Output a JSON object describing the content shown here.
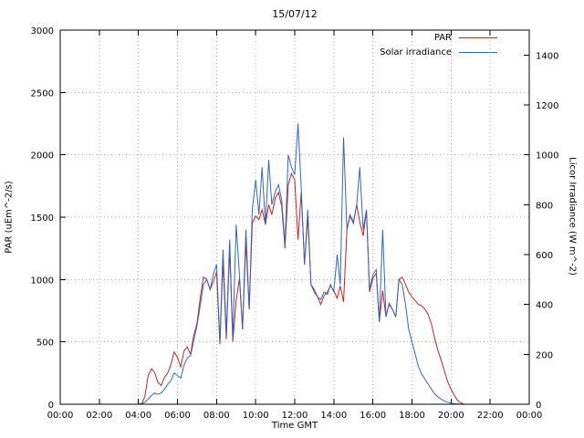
{
  "chart_data": {
    "type": "line",
    "title": "15/07/12",
    "xlabel": "Time GMT",
    "ylabel_left": "PAR (uEm^-2/s)",
    "ylabel_right": "Licor Irradiance (W m^-2)",
    "x_range": [
      0,
      24
    ],
    "y_left_range": [
      0,
      3000
    ],
    "y_right_range": [
      0,
      1500
    ],
    "grid": "dotted",
    "grid_color": "#b0b0b0",
    "legend_position": "top-right",
    "x_ticks": [
      [
        0,
        "00:00"
      ],
      [
        2,
        "02:00"
      ],
      [
        4,
        "04:00"
      ],
      [
        6,
        "06:00"
      ],
      [
        8,
        "08:00"
      ],
      [
        10,
        "10:00"
      ],
      [
        12,
        "12:00"
      ],
      [
        14,
        "14:00"
      ],
      [
        16,
        "16:00"
      ],
      [
        18,
        "18:00"
      ],
      [
        20,
        "20:00"
      ],
      [
        22,
        "22:00"
      ],
      [
        24,
        "00:00"
      ]
    ],
    "y_left_ticks": [
      0,
      500,
      1000,
      1500,
      2000,
      2500,
      3000
    ],
    "y_right_ticks": [
      0,
      200,
      400,
      600,
      800,
      1000,
      1200,
      1400
    ],
    "series": [
      {
        "name": "PAR",
        "axis": "left",
        "color": "#c42222",
        "units": "uEm^-2/s",
        "points": [
          [
            0,
            0
          ],
          [
            3.83,
            0
          ],
          [
            4.0,
            0
          ],
          [
            4.17,
            5
          ],
          [
            4.33,
            60
          ],
          [
            4.5,
            230
          ],
          [
            4.67,
            285
          ],
          [
            4.83,
            255
          ],
          [
            5.0,
            175
          ],
          [
            5.17,
            150
          ],
          [
            5.33,
            215
          ],
          [
            5.5,
            250
          ],
          [
            5.67,
            320
          ],
          [
            5.83,
            420
          ],
          [
            6.0,
            375
          ],
          [
            6.17,
            300
          ],
          [
            6.33,
            425
          ],
          [
            6.5,
            460
          ],
          [
            6.67,
            400
          ],
          [
            6.83,
            550
          ],
          [
            7.0,
            650
          ],
          [
            7.17,
            860
          ],
          [
            7.33,
            1020
          ],
          [
            7.5,
            1000
          ],
          [
            7.67,
            920
          ],
          [
            7.83,
            980
          ],
          [
            8.0,
            1060
          ],
          [
            8.17,
            480
          ],
          [
            8.33,
            1150
          ],
          [
            8.5,
            520
          ],
          [
            8.67,
            1250
          ],
          [
            8.83,
            500
          ],
          [
            9.0,
            830
          ],
          [
            9.17,
            1010
          ],
          [
            9.33,
            600
          ],
          [
            9.5,
            1300
          ],
          [
            9.67,
            760
          ],
          [
            9.83,
            1450
          ],
          [
            10.0,
            1510
          ],
          [
            10.17,
            1480
          ],
          [
            10.33,
            1560
          ],
          [
            10.5,
            1440
          ],
          [
            10.67,
            1600
          ],
          [
            10.83,
            1520
          ],
          [
            11.0,
            1650
          ],
          [
            11.17,
            1700
          ],
          [
            11.33,
            1590
          ],
          [
            11.5,
            1250
          ],
          [
            11.67,
            1760
          ],
          [
            11.83,
            1850
          ],
          [
            12.0,
            1800
          ],
          [
            12.17,
            1320
          ],
          [
            12.33,
            1700
          ],
          [
            12.5,
            1120
          ],
          [
            12.67,
            1500
          ],
          [
            12.83,
            960
          ],
          [
            13.0,
            900
          ],
          [
            13.17,
            860
          ],
          [
            13.33,
            800
          ],
          [
            13.5,
            870
          ],
          [
            13.67,
            900
          ],
          [
            13.83,
            950
          ],
          [
            14.0,
            910
          ],
          [
            14.17,
            850
          ],
          [
            14.33,
            950
          ],
          [
            14.5,
            820
          ],
          [
            14.67,
            1400
          ],
          [
            14.83,
            1510
          ],
          [
            15.0,
            1450
          ],
          [
            15.17,
            1600
          ],
          [
            15.33,
            1460
          ],
          [
            15.5,
            1350
          ],
          [
            15.67,
            1550
          ],
          [
            15.83,
            900
          ],
          [
            16.0,
            1010
          ],
          [
            16.17,
            1050
          ],
          [
            16.33,
            660
          ],
          [
            16.5,
            910
          ],
          [
            16.67,
            700
          ],
          [
            16.83,
            810
          ],
          [
            17.0,
            760
          ],
          [
            17.17,
            700
          ],
          [
            17.33,
            1000
          ],
          [
            17.5,
            1020
          ],
          [
            17.67,
            960
          ],
          [
            17.83,
            900
          ],
          [
            18.0,
            860
          ],
          [
            18.17,
            830
          ],
          [
            18.33,
            800
          ],
          [
            18.5,
            790
          ],
          [
            18.67,
            760
          ],
          [
            18.83,
            720
          ],
          [
            19.0,
            640
          ],
          [
            19.17,
            520
          ],
          [
            19.33,
            430
          ],
          [
            19.5,
            350
          ],
          [
            19.67,
            260
          ],
          [
            19.83,
            180
          ],
          [
            20.0,
            120
          ],
          [
            20.17,
            70
          ],
          [
            20.33,
            30
          ],
          [
            20.5,
            10
          ],
          [
            20.67,
            0
          ],
          [
            24,
            0
          ]
        ]
      },
      {
        "name": "Solar irradiance",
        "axis": "right",
        "color": "#3366bb",
        "units": "W m^-2",
        "points": [
          [
            0,
            0
          ],
          [
            3.83,
            0
          ],
          [
            4.0,
            0
          ],
          [
            4.17,
            2
          ],
          [
            4.33,
            8
          ],
          [
            4.5,
            20
          ],
          [
            4.67,
            35
          ],
          [
            4.83,
            45
          ],
          [
            5.0,
            40
          ],
          [
            5.17,
            45
          ],
          [
            5.33,
            60
          ],
          [
            5.5,
            80
          ],
          [
            5.67,
            95
          ],
          [
            5.83,
            125
          ],
          [
            6.0,
            115
          ],
          [
            6.17,
            105
          ],
          [
            6.33,
            155
          ],
          [
            6.5,
            185
          ],
          [
            6.67,
            195
          ],
          [
            6.83,
            255
          ],
          [
            7.0,
            315
          ],
          [
            7.17,
            400
          ],
          [
            7.33,
            480
          ],
          [
            7.5,
            500
          ],
          [
            7.67,
            460
          ],
          [
            7.83,
            520
          ],
          [
            8.0,
            560
          ],
          [
            8.17,
            250
          ],
          [
            8.33,
            620
          ],
          [
            8.5,
            280
          ],
          [
            8.67,
            660
          ],
          [
            8.83,
            260
          ],
          [
            9.0,
            720
          ],
          [
            9.17,
            520
          ],
          [
            9.33,
            300
          ],
          [
            9.5,
            700
          ],
          [
            9.67,
            380
          ],
          [
            9.83,
            780
          ],
          [
            10.0,
            900
          ],
          [
            10.17,
            760
          ],
          [
            10.33,
            950
          ],
          [
            10.5,
            720
          ],
          [
            10.67,
            980
          ],
          [
            10.83,
            800
          ],
          [
            11.0,
            850
          ],
          [
            11.17,
            880
          ],
          [
            11.33,
            820
          ],
          [
            11.5,
            640
          ],
          [
            11.67,
            1000
          ],
          [
            11.83,
            950
          ],
          [
            12.0,
            920
          ],
          [
            12.17,
            1125
          ],
          [
            12.33,
            870
          ],
          [
            12.5,
            560
          ],
          [
            12.67,
            780
          ],
          [
            12.83,
            480
          ],
          [
            13.0,
            460
          ],
          [
            13.17,
            430
          ],
          [
            13.33,
            420
          ],
          [
            13.5,
            450
          ],
          [
            13.67,
            440
          ],
          [
            13.83,
            480
          ],
          [
            14.0,
            450
          ],
          [
            14.17,
            600
          ],
          [
            14.33,
            480
          ],
          [
            14.5,
            1070
          ],
          [
            14.67,
            700
          ],
          [
            14.83,
            760
          ],
          [
            15.0,
            730
          ],
          [
            15.17,
            800
          ],
          [
            15.33,
            950
          ],
          [
            15.5,
            700
          ],
          [
            15.67,
            780
          ],
          [
            15.83,
            460
          ],
          [
            16.0,
            520
          ],
          [
            16.17,
            540
          ],
          [
            16.33,
            330
          ],
          [
            16.5,
            700
          ],
          [
            16.67,
            350
          ],
          [
            16.83,
            400
          ],
          [
            17.0,
            380
          ],
          [
            17.17,
            350
          ],
          [
            17.33,
            500
          ],
          [
            17.5,
            480
          ],
          [
            17.67,
            400
          ],
          [
            17.83,
            300
          ],
          [
            18.0,
            250
          ],
          [
            18.17,
            200
          ],
          [
            18.33,
            150
          ],
          [
            18.5,
            120
          ],
          [
            18.67,
            100
          ],
          [
            18.83,
            80
          ],
          [
            19.0,
            60
          ],
          [
            19.17,
            40
          ],
          [
            19.33,
            30
          ],
          [
            19.5,
            20
          ],
          [
            19.67,
            12
          ],
          [
            19.83,
            8
          ],
          [
            20.0,
            4
          ],
          [
            20.17,
            2
          ],
          [
            20.33,
            1
          ],
          [
            20.5,
            0
          ],
          [
            24,
            0
          ]
        ]
      }
    ]
  }
}
